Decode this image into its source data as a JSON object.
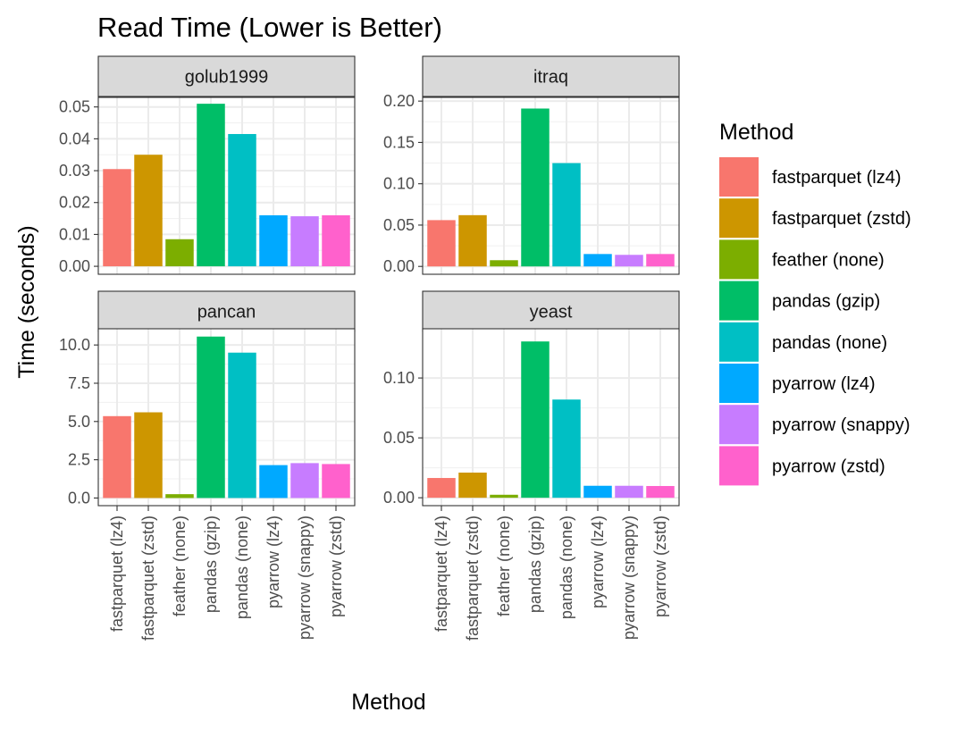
{
  "chart_data": {
    "type": "bar",
    "title": "Read Time (Lower is Better)",
    "xlabel": "Method",
    "ylabel": "Time (seconds)",
    "legend": {
      "title": "Method",
      "position": "right"
    },
    "grid": true,
    "categories": [
      "fastparquet (lz4)",
      "fastparquet (zstd)",
      "feather (none)",
      "pandas (gzip)",
      "pandas (none)",
      "pyarrow (lz4)",
      "pyarrow (snappy)",
      "pyarrow (zstd)"
    ],
    "colors": [
      "#F8766D",
      "#CD9600",
      "#7CAE00",
      "#00BE67",
      "#00BFC4",
      "#00A9FF",
      "#C77CFF",
      "#FF61CC"
    ],
    "panels": [
      {
        "name": "golub1999",
        "ylim": [
          -0.0025,
          0.053
        ],
        "yticks": [
          0,
          0.01,
          0.02,
          0.03,
          0.04,
          0.05
        ],
        "ytick_labels": [
          "0.00",
          "0.01",
          "0.02",
          "0.03",
          "0.04",
          "0.05"
        ],
        "values": [
          0.0305,
          0.035,
          0.0085,
          0.051,
          0.0415,
          0.016,
          0.0157,
          0.016
        ]
      },
      {
        "name": "itraq",
        "ylim": [
          -0.0095,
          0.2045
        ],
        "yticks": [
          0,
          0.05,
          0.1,
          0.15,
          0.2
        ],
        "ytick_labels": [
          "0.00",
          "0.05",
          "0.10",
          "0.15",
          "0.20"
        ],
        "values": [
          0.056,
          0.062,
          0.0075,
          0.191,
          0.125,
          0.015,
          0.014,
          0.015
        ]
      },
      {
        "name": "pancan",
        "ylim": [
          -0.5,
          11.06
        ],
        "yticks": [
          0,
          2.5,
          5,
          7.5,
          10
        ],
        "ytick_labels": [
          "0.0",
          "2.5",
          "5.0",
          "7.5",
          "10.0"
        ],
        "values": [
          5.35,
          5.6,
          0.25,
          10.55,
          9.5,
          2.15,
          2.28,
          2.22
        ]
      },
      {
        "name": "yeast",
        "ylim": [
          -0.0066,
          0.1411
        ],
        "yticks": [
          0,
          0.05,
          0.1
        ],
        "ytick_labels": [
          "0.00",
          "0.05",
          "0.10"
        ],
        "values": [
          0.0165,
          0.021,
          0.0025,
          0.1305,
          0.082,
          0.01,
          0.01,
          0.0098
        ]
      }
    ]
  }
}
